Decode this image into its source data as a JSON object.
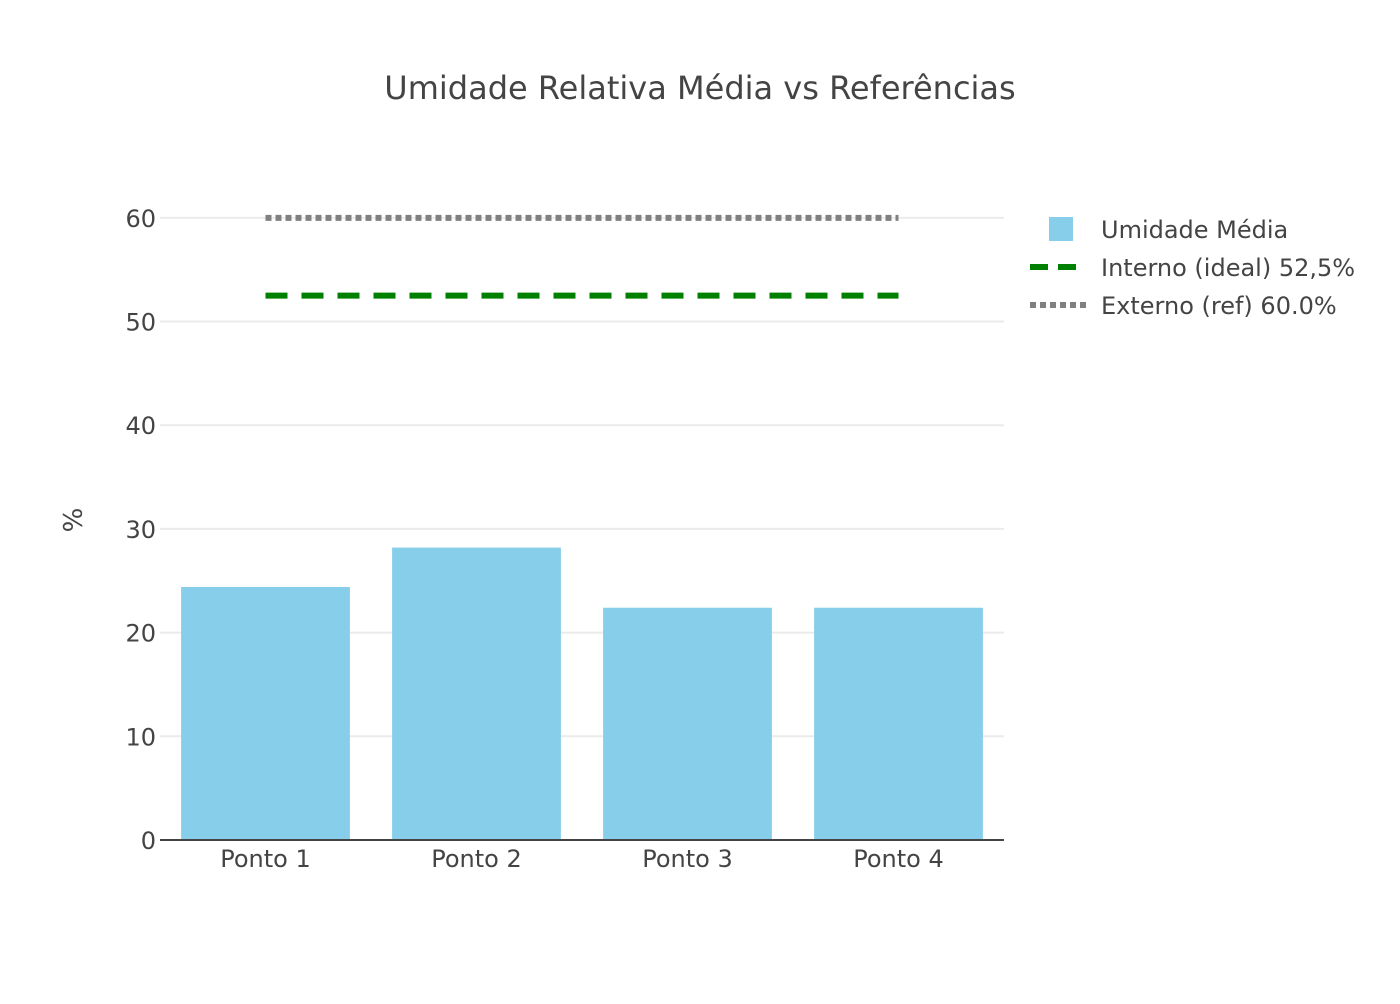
{
  "chart_data": {
    "type": "bar",
    "title": "Umidade Relativa Média vs Referências",
    "xlabel": "",
    "ylabel": "%",
    "categories": [
      "Ponto 1",
      "Ponto 2",
      "Ponto 3",
      "Ponto 4"
    ],
    "ylim": [
      0,
      65
    ],
    "yticks": [
      0,
      10,
      20,
      30,
      40,
      50,
      60
    ],
    "grid": true,
    "legend_position": "top-right",
    "series": [
      {
        "name": "Umidade Média",
        "kind": "bar",
        "values": [
          24.4,
          28.2,
          22.4,
          22.4
        ],
        "color": "#87CEEB"
      },
      {
        "name": "Interno (ideal) 52,5%",
        "kind": "line",
        "style": "dashed",
        "values": [
          52.5,
          52.5,
          52.5,
          52.5
        ],
        "color": "#008000"
      },
      {
        "name": "Externo (ref) 60.0%",
        "kind": "line",
        "style": "dotted",
        "values": [
          60.0,
          60.0,
          60.0,
          60.0
        ],
        "color": "#808080"
      }
    ]
  }
}
